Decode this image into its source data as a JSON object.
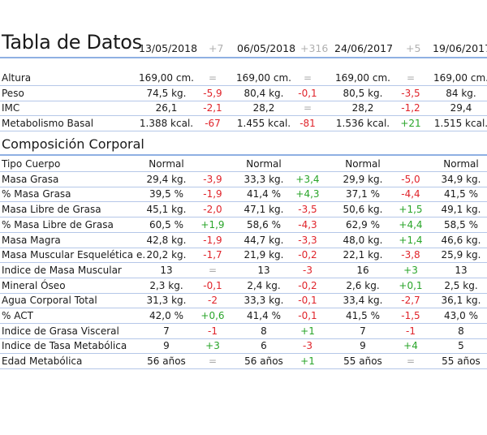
{
  "title": "Tabla de Datos",
  "headers": [
    {
      "date": "13/05/2018",
      "diff": "+7"
    },
    {
      "date": "06/05/2018",
      "diff": "+316"
    },
    {
      "date": "24/06/2017",
      "diff": "+5"
    },
    {
      "date": "19/06/2017",
      "diff": ""
    }
  ],
  "section_title": "Composición Corporal",
  "colors": {
    "negative": "#e0242b",
    "positive": "#2aa52a",
    "equal": "#aaaaaa",
    "rule": "#b5c7e8"
  },
  "rows_basic": [
    {
      "label": "Altura",
      "cells": [
        "169,00 cm.",
        "=",
        "169,00 cm.",
        "=",
        "169,00 cm.",
        "=",
        "169,00 cm."
      ]
    },
    {
      "label": "Peso",
      "cells": [
        "74,5 kg.",
        "-5,9",
        "80,4 kg.",
        "-0,1",
        "80,5 kg.",
        "-3,5",
        "84 kg."
      ]
    },
    {
      "label": "IMC",
      "cells": [
        "26,1",
        "-2,1",
        "28,2",
        "=",
        "28,2",
        "-1,2",
        "29,4"
      ]
    },
    {
      "label": "Metabolismo Basal",
      "cells": [
        "1.388 kcal.",
        "-67",
        "1.455 kcal.",
        "-81",
        "1.536 kcal.",
        "+21",
        "1.515 kcal."
      ]
    }
  ],
  "rows_comp": [
    {
      "label": "Tipo Cuerpo",
      "cells": [
        "Normal",
        "",
        "Normal",
        "",
        "Normal",
        "",
        "Normal"
      ]
    },
    {
      "label": "Masa Grasa",
      "cells": [
        "29,4 kg.",
        "-3,9",
        "33,3 kg.",
        "+3,4",
        "29,9 kg.",
        "-5,0",
        "34,9 kg."
      ]
    },
    {
      "label": "% Masa Grasa",
      "cells": [
        "39,5 %",
        "-1,9",
        "41,4 %",
        "+4,3",
        "37,1 %",
        "-4,4",
        "41,5 %"
      ]
    },
    {
      "label": "Masa Libre de Grasa",
      "cells": [
        "45,1 kg.",
        "-2,0",
        "47,1 kg.",
        "-3,5",
        "50,6 kg.",
        "+1,5",
        "49,1 kg."
      ]
    },
    {
      "label": "% Masa Libre de Grasa",
      "cells": [
        "60,5 %",
        "+1,9",
        "58,6 %",
        "-4,3",
        "62,9 %",
        "+4,4",
        "58,5 %"
      ]
    },
    {
      "label": "Masa Magra",
      "cells": [
        "42,8 kg.",
        "-1,9",
        "44,7 kg.",
        "-3,3",
        "48,0 kg.",
        "+1,4",
        "46,6 kg."
      ]
    },
    {
      "label": "Masa Muscular Esquelética e.",
      "cells": [
        "20,2 kg.",
        "-1,7",
        "21,9 kg.",
        "-0,2",
        "22,1 kg.",
        "-3,8",
        "25,9 kg."
      ]
    },
    {
      "label": "Indice de Masa Muscular",
      "cells": [
        "13",
        "=",
        "13",
        "-3",
        "16",
        "+3",
        "13"
      ]
    },
    {
      "label": "Mineral Óseo",
      "cells": [
        "2,3 kg.",
        "-0,1",
        "2,4 kg.",
        "-0,2",
        "2,6 kg.",
        "+0,1",
        "2,5 kg."
      ]
    },
    {
      "label": "Agua Corporal Total",
      "cells": [
        "31,3 kg.",
        "-2",
        "33,3 kg.",
        "-0,1",
        "33,4 kg.",
        "-2,7",
        "36,1 kg."
      ]
    },
    {
      "label": "% ACT",
      "cells": [
        "42,0 %",
        "+0,6",
        "41,4 %",
        "-0,1",
        "41,5 %",
        "-1,5",
        "43,0 %"
      ]
    },
    {
      "label": "Indice de Grasa Visceral",
      "cells": [
        "7",
        "-1",
        "8",
        "+1",
        "7",
        "-1",
        "8"
      ]
    },
    {
      "label": "Indice de Tasa Metabólica",
      "cells": [
        "9",
        "+3",
        "6",
        "-3",
        "9",
        "+4",
        "5"
      ]
    },
    {
      "label": "Edad Metabólica",
      "cells": [
        "56 años",
        "=",
        "56 años",
        "+1",
        "55 años",
        "=",
        "55 años"
      ]
    }
  ]
}
